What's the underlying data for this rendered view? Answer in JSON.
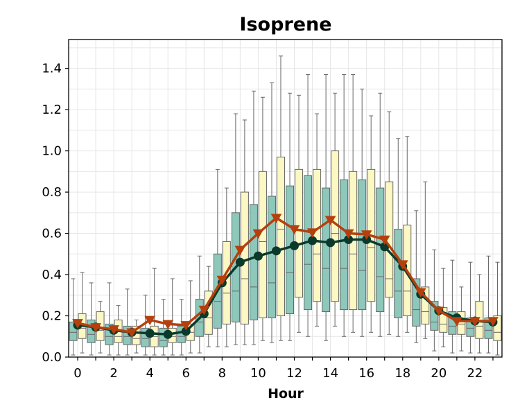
{
  "chart_data": {
    "type": "box+line",
    "title": "Isoprene",
    "xlabel": "Hour",
    "ylabel": "",
    "xlim": [
      -0.5,
      23.5
    ],
    "ylim": [
      0.0,
      1.54
    ],
    "x_ticks": [
      0,
      2,
      4,
      6,
      8,
      10,
      12,
      14,
      16,
      18,
      20,
      22
    ],
    "x_tick_labels": [
      "0",
      "2",
      "4",
      "6",
      "8",
      "10",
      "12",
      "14",
      "16",
      "18",
      "20",
      "22"
    ],
    "y_ticks": [
      0.0,
      0.2,
      0.4,
      0.6,
      0.8,
      1.0,
      1.2,
      1.4
    ],
    "y_tick_labels": [
      "0.0",
      "0.2",
      "0.4",
      "0.6",
      "0.8",
      "1.0",
      "1.2",
      "1.4"
    ],
    "grid": true,
    "colors": {
      "teal_box": "#8dc8bb",
      "yellow_box": "#fbf8c4",
      "teal_line": "#0b3a2c",
      "orange_line": "#b5400d",
      "whisker": "#666666",
      "grid": "#e6e6e6"
    },
    "hours": [
      0,
      1,
      2,
      3,
      4,
      5,
      6,
      7,
      8,
      9,
      10,
      11,
      12,
      13,
      14,
      15,
      16,
      17,
      18,
      19,
      20,
      21,
      22,
      23
    ],
    "box_series": [
      {
        "color_key": "teal_box",
        "q1": [
          0.08,
          0.07,
          0.06,
          0.06,
          0.05,
          0.05,
          0.07,
          0.1,
          0.14,
          0.17,
          0.18,
          0.19,
          0.21,
          0.23,
          0.22,
          0.23,
          0.23,
          0.22,
          0.19,
          0.15,
          0.13,
          0.11,
          0.1,
          0.09
        ],
        "median": [
          0.12,
          0.11,
          0.1,
          0.1,
          0.09,
          0.08,
          0.1,
          0.17,
          0.27,
          0.32,
          0.34,
          0.36,
          0.41,
          0.45,
          0.43,
          0.43,
          0.42,
          0.39,
          0.32,
          0.23,
          0.17,
          0.15,
          0.14,
          0.13
        ],
        "q3": [
          0.17,
          0.18,
          0.16,
          0.15,
          0.14,
          0.14,
          0.15,
          0.28,
          0.5,
          0.7,
          0.74,
          0.78,
          0.83,
          0.88,
          0.82,
          0.86,
          0.86,
          0.82,
          0.62,
          0.38,
          0.27,
          0.22,
          0.19,
          0.19
        ],
        "whislo": [
          0.01,
          0.01,
          0.01,
          0.01,
          0.01,
          0.01,
          0.01,
          0.02,
          0.05,
          0.06,
          0.06,
          0.07,
          0.08,
          0.1,
          0.08,
          0.1,
          0.1,
          0.1,
          0.1,
          0.07,
          0.03,
          0.02,
          0.02,
          0.02
        ],
        "whishi": [
          0.38,
          0.36,
          0.36,
          0.33,
          0.3,
          0.28,
          0.28,
          0.49,
          0.91,
          1.18,
          1.29,
          1.33,
          1.28,
          1.37,
          1.37,
          1.37,
          1.3,
          1.28,
          1.06,
          0.71,
          0.52,
          0.47,
          0.46,
          0.49
        ]
      },
      {
        "color_key": "yellow_box",
        "q1": [
          0.09,
          0.08,
          0.07,
          0.06,
          0.05,
          0.07,
          0.08,
          0.11,
          0.16,
          0.16,
          0.19,
          0.2,
          0.29,
          0.27,
          0.27,
          0.23,
          0.27,
          0.29,
          0.2,
          0.16,
          0.12,
          0.11,
          0.09,
          0.08
        ],
        "median": [
          0.14,
          0.13,
          0.1,
          0.09,
          0.1,
          0.1,
          0.12,
          0.19,
          0.31,
          0.38,
          0.56,
          0.62,
          0.62,
          0.5,
          0.6,
          0.5,
          0.53,
          0.38,
          0.32,
          0.22,
          0.16,
          0.16,
          0.15,
          0.12
        ],
        "q3": [
          0.21,
          0.22,
          0.18,
          0.15,
          0.15,
          0.14,
          0.16,
          0.32,
          0.56,
          0.8,
          0.9,
          0.97,
          0.91,
          0.91,
          1.0,
          0.9,
          0.91,
          0.85,
          0.64,
          0.34,
          0.24,
          0.22,
          0.27,
          0.2
        ],
        "whislo": [
          0.02,
          0.02,
          0.01,
          0.02,
          0.01,
          0.01,
          0.02,
          0.05,
          0.05,
          0.06,
          0.08,
          0.08,
          0.12,
          0.15,
          0.15,
          0.12,
          0.12,
          0.11,
          0.12,
          0.09,
          0.05,
          0.03,
          0.02,
          0.01
        ],
        "whishi": [
          0.41,
          0.27,
          0.25,
          0.18,
          0.43,
          0.38,
          0.37,
          0.44,
          0.82,
          1.15,
          1.26,
          1.46,
          1.27,
          1.18,
          1.28,
          1.37,
          1.17,
          1.19,
          1.07,
          0.85,
          0.43,
          0.34,
          0.4,
          0.46
        ]
      }
    ],
    "line_series": [
      {
        "color_key": "teal_line",
        "marker": "circle",
        "values": [
          0.155,
          0.145,
          0.13,
          0.12,
          0.115,
          0.11,
          0.125,
          0.21,
          0.36,
          0.46,
          0.49,
          0.515,
          0.54,
          0.565,
          0.555,
          0.57,
          0.57,
          0.535,
          0.44,
          0.305,
          0.225,
          0.19,
          0.175,
          0.17
        ]
      },
      {
        "color_key": "orange_line",
        "marker": "triangle-down",
        "values": [
          0.165,
          0.145,
          0.135,
          0.12,
          0.18,
          0.16,
          0.155,
          0.23,
          0.375,
          0.52,
          0.6,
          0.675,
          0.62,
          0.605,
          0.665,
          0.6,
          0.595,
          0.57,
          0.45,
          0.315,
          0.225,
          0.175,
          0.175,
          0.175
        ]
      }
    ]
  }
}
